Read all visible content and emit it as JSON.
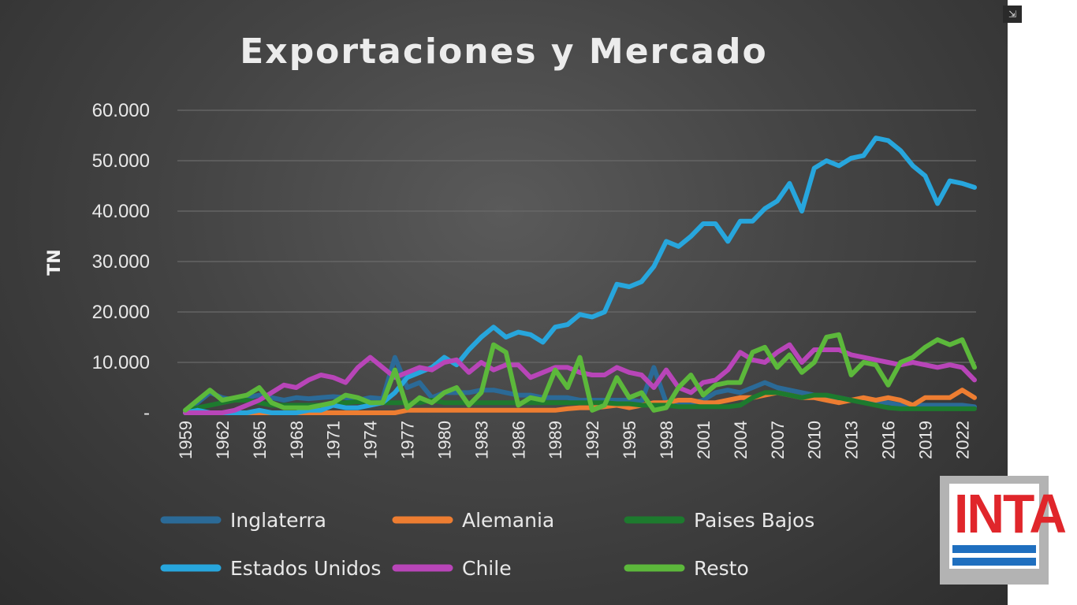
{
  "ui": {
    "exit_fullscreen_icon": "collapse-arrows-icon",
    "logo_text": "INTA",
    "colors": {
      "panel_bg": "#444444",
      "grid": "#6a6a6a",
      "text": "#e8e8e8",
      "logo_red": "#e0262b",
      "logo_blue": "#1f6fbf"
    }
  },
  "chart_data": {
    "type": "line",
    "title": "Exportaciones y Mercado",
    "ylabel": "TN",
    "xlabel": "",
    "ylim": [
      0,
      60000
    ],
    "y_ticks": [
      0,
      10000,
      20000,
      30000,
      40000,
      50000,
      60000
    ],
    "y_tick_labels": [
      "-",
      "10.000",
      "20.000",
      "30.000",
      "40.000",
      "50.000",
      "60.000"
    ],
    "x_start": 1959,
    "x_end": 2023,
    "x_tick_labels": [
      "1959",
      "1962",
      "1965",
      "1968",
      "1971",
      "1974",
      "1977",
      "1980",
      "1983",
      "1986",
      "1989",
      "1992",
      "1995",
      "1998",
      "2001",
      "2004",
      "2007",
      "2010",
      "2013",
      "2016",
      "2019",
      "2022"
    ],
    "grid": true,
    "legend_position": "bottom",
    "series": [
      {
        "name": "Inglaterra",
        "color": "#2b6a97",
        "values": [
          500,
          2000,
          4000,
          3000,
          2500,
          3000,
          3500,
          3000,
          2500,
          3000,
          2800,
          3000,
          3200,
          3000,
          2500,
          3000,
          2800,
          11000,
          5000,
          6000,
          3000,
          4000,
          4000,
          4000,
          4500,
          4500,
          4000,
          3500,
          3500,
          3000,
          3000,
          3000,
          2500,
          2500,
          2500,
          2500,
          2500,
          2200,
          9000,
          2000,
          1500,
          2000,
          2500,
          4000,
          4500,
          4000,
          5000,
          6000,
          5000,
          4500,
          4000,
          3500,
          3000,
          3000,
          2500,
          2500,
          2000,
          2000,
          1500,
          1500,
          1500,
          1500,
          1500,
          1500,
          1200
        ]
      },
      {
        "name": "Alemania",
        "color": "#ed7d31",
        "values": [
          0,
          0,
          0,
          0,
          0,
          0,
          0,
          0,
          0,
          0,
          0,
          0,
          0,
          0,
          0,
          0,
          0,
          0,
          500,
          500,
          500,
          500,
          500,
          500,
          500,
          500,
          500,
          500,
          500,
          500,
          500,
          800,
          1000,
          1000,
          1200,
          1500,
          1000,
          1500,
          2000,
          2000,
          2500,
          2500,
          2000,
          2000,
          2500,
          3000,
          3000,
          3500,
          4000,
          3500,
          3000,
          3000,
          2500,
          2000,
          2500,
          3000,
          2500,
          3000,
          2500,
          1500,
          3000,
          3000,
          3000,
          4500,
          3000
        ]
      },
      {
        "name": "Paises Bajos",
        "color": "#1d7a2e",
        "values": [
          500,
          1000,
          1500,
          2000,
          2500,
          2500,
          2000,
          1500,
          1500,
          1500,
          1500,
          1500,
          1800,
          2000,
          2200,
          2000,
          2000,
          2000,
          2000,
          2000,
          2500,
          2000,
          2000,
          2000,
          2000,
          2000,
          2000,
          2000,
          2000,
          2000,
          2000,
          2000,
          2000,
          2000,
          2000,
          1800,
          1800,
          1500,
          1500,
          1500,
          1200,
          1200,
          1200,
          1200,
          1200,
          1500,
          3000,
          4000,
          4000,
          3500,
          3000,
          3500,
          3500,
          3000,
          2500,
          2000,
          1500,
          1000,
          800,
          800,
          800,
          800,
          800,
          800,
          800
        ]
      },
      {
        "name": "Estados Unidos",
        "color": "#27a6dd",
        "values": [
          0,
          500,
          0,
          0,
          0,
          0,
          500,
          0,
          0,
          0,
          500,
          500,
          1500,
          1000,
          1000,
          1500,
          2000,
          4000,
          7000,
          8000,
          9000,
          11000,
          9500,
          12500,
          15000,
          17000,
          15000,
          16000,
          15500,
          14000,
          17000,
          17500,
          19500,
          19000,
          20000,
          25500,
          25000,
          26000,
          29000,
          34000,
          33000,
          35000,
          37500,
          37500,
          34000,
          38000,
          38000,
          40500,
          42000,
          45500,
          40000,
          48500,
          50000,
          49000,
          50500,
          51000,
          54500,
          54000,
          52000,
          49000,
          47000,
          41500,
          46000,
          45500,
          44700
        ]
      },
      {
        "name": "Chile",
        "color": "#b845b8",
        "values": [
          0,
          0,
          0,
          0,
          500,
          1500,
          2500,
          4000,
          5500,
          5000,
          6500,
          7500,
          7000,
          6000,
          9000,
          11000,
          9000,
          7000,
          8000,
          9000,
          8500,
          10000,
          10500,
          8000,
          10000,
          8500,
          9500,
          9500,
          7000,
          8000,
          9000,
          9000,
          8000,
          7500,
          7500,
          9000,
          8000,
          7500,
          5000,
          8500,
          5000,
          4000,
          6000,
          6500,
          8500,
          12000,
          10500,
          10000,
          12000,
          13500,
          10000,
          12500,
          12500,
          12500,
          11500,
          11000,
          10500,
          10000,
          9500,
          10000,
          9500,
          9000,
          9500,
          9000,
          6500
        ]
      },
      {
        "name": "Resto",
        "color": "#5cb83b",
        "values": [
          500,
          2500,
          4500,
          2500,
          3000,
          3500,
          5000,
          2000,
          1000,
          1000,
          1000,
          1500,
          2000,
          3500,
          3000,
          2000,
          2000,
          8500,
          1000,
          3000,
          2000,
          4000,
          5000,
          1500,
          4000,
          13500,
          12000,
          1500,
          3000,
          2500,
          8500,
          5000,
          11000,
          500,
          1500,
          7000,
          3000,
          4000,
          500,
          1000,
          5000,
          7500,
          3500,
          5500,
          6000,
          6000,
          12000,
          13000,
          9000,
          11500,
          8000,
          10000,
          15000,
          15500,
          7500,
          10000,
          9500,
          5500,
          10000,
          11000,
          13000,
          14500,
          13500,
          14500,
          9000
        ]
      }
    ]
  }
}
